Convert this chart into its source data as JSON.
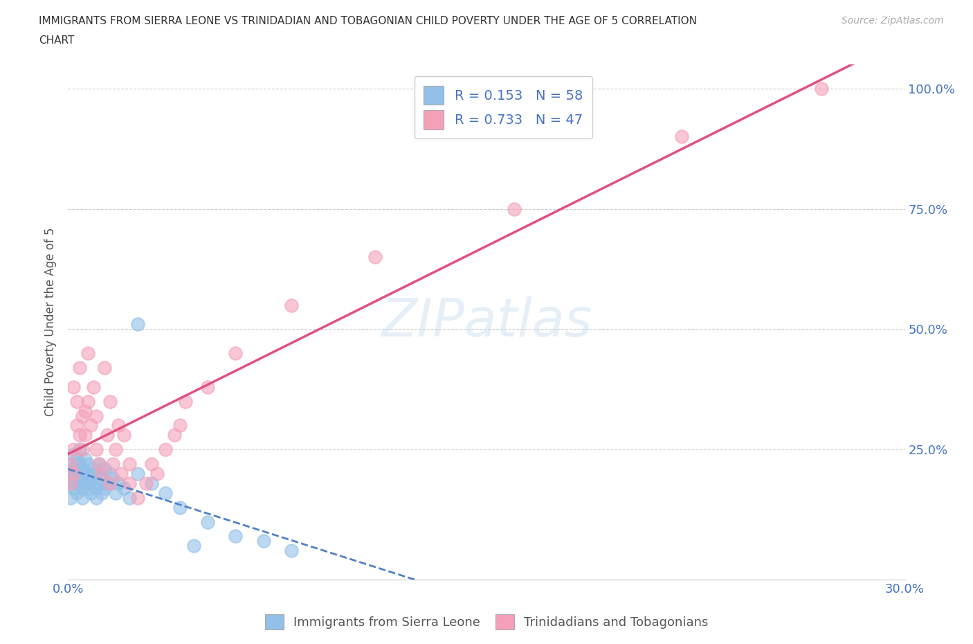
{
  "title": "IMMIGRANTS FROM SIERRA LEONE VS TRINIDADIAN AND TOBAGONIAN CHILD POVERTY UNDER THE AGE OF 5 CORRELATION\nCHART",
  "source": "Source: ZipAtlas.com",
  "ylabel": "Child Poverty Under the Age of 5",
  "xlim": [
    0.0,
    0.3
  ],
  "ylim": [
    -0.02,
    1.05
  ],
  "xtick_positions": [
    0.0,
    0.05,
    0.1,
    0.15,
    0.2,
    0.25,
    0.3
  ],
  "xtick_labels": [
    "0.0%",
    "",
    "",
    "",
    "",
    "",
    "30.0%"
  ],
  "ytick_positions": [
    0.0,
    0.25,
    0.5,
    0.75,
    1.0
  ],
  "ytick_labels": [
    "",
    "25.0%",
    "50.0%",
    "75.0%",
    "100.0%"
  ],
  "legend1_label": "R = 0.153   N = 58",
  "legend2_label": "R = 0.733   N = 47",
  "color_blue": "#92c0e8",
  "color_pink": "#f4a0b8",
  "color_blue_line": "#5080c8",
  "color_pink_line": "#e05080",
  "color_text": "#4472c4",
  "watermark": "ZIPatlas",
  "bottom_legend1": "Immigrants from Sierra Leone",
  "bottom_legend2": "Trinidadians and Tobagonians",
  "sierra_leone_points": [
    [
      0.001,
      0.18
    ],
    [
      0.001,
      0.22
    ],
    [
      0.001,
      0.15
    ],
    [
      0.001,
      0.2
    ],
    [
      0.002,
      0.2
    ],
    [
      0.002,
      0.24
    ],
    [
      0.002,
      0.17
    ],
    [
      0.002,
      0.18
    ],
    [
      0.002,
      0.21
    ],
    [
      0.003,
      0.22
    ],
    [
      0.003,
      0.19
    ],
    [
      0.003,
      0.16
    ],
    [
      0.003,
      0.23
    ],
    [
      0.004,
      0.2
    ],
    [
      0.004,
      0.18
    ],
    [
      0.004,
      0.22
    ],
    [
      0.004,
      0.25
    ],
    [
      0.005,
      0.19
    ],
    [
      0.005,
      0.21
    ],
    [
      0.005,
      0.17
    ],
    [
      0.005,
      0.15
    ],
    [
      0.006,
      0.18
    ],
    [
      0.006,
      0.23
    ],
    [
      0.006,
      0.2
    ],
    [
      0.007,
      0.22
    ],
    [
      0.007,
      0.17
    ],
    [
      0.007,
      0.19
    ],
    [
      0.008,
      0.2
    ],
    [
      0.008,
      0.16
    ],
    [
      0.008,
      0.18
    ],
    [
      0.009,
      0.19
    ],
    [
      0.009,
      0.21
    ],
    [
      0.01,
      0.17
    ],
    [
      0.01,
      0.15
    ],
    [
      0.01,
      0.2
    ],
    [
      0.011,
      0.22
    ],
    [
      0.011,
      0.18
    ],
    [
      0.012,
      0.16
    ],
    [
      0.012,
      0.19
    ],
    [
      0.013,
      0.17
    ],
    [
      0.013,
      0.21
    ],
    [
      0.014,
      0.18
    ],
    [
      0.015,
      0.2
    ],
    [
      0.016,
      0.19
    ],
    [
      0.017,
      0.16
    ],
    [
      0.018,
      0.18
    ],
    [
      0.02,
      0.17
    ],
    [
      0.022,
      0.15
    ],
    [
      0.025,
      0.2
    ],
    [
      0.025,
      0.51
    ],
    [
      0.03,
      0.18
    ],
    [
      0.035,
      0.16
    ],
    [
      0.04,
      0.13
    ],
    [
      0.045,
      0.05
    ],
    [
      0.05,
      0.1
    ],
    [
      0.06,
      0.07
    ],
    [
      0.07,
      0.06
    ],
    [
      0.08,
      0.04
    ]
  ],
  "trinidadian_points": [
    [
      0.001,
      0.18
    ],
    [
      0.001,
      0.22
    ],
    [
      0.002,
      0.2
    ],
    [
      0.002,
      0.25
    ],
    [
      0.002,
      0.38
    ],
    [
      0.003,
      0.3
    ],
    [
      0.003,
      0.35
    ],
    [
      0.004,
      0.42
    ],
    [
      0.004,
      0.28
    ],
    [
      0.005,
      0.32
    ],
    [
      0.005,
      0.25
    ],
    [
      0.006,
      0.28
    ],
    [
      0.006,
      0.33
    ],
    [
      0.007,
      0.45
    ],
    [
      0.007,
      0.35
    ],
    [
      0.008,
      0.3
    ],
    [
      0.009,
      0.38
    ],
    [
      0.01,
      0.25
    ],
    [
      0.01,
      0.32
    ],
    [
      0.011,
      0.22
    ],
    [
      0.012,
      0.2
    ],
    [
      0.013,
      0.42
    ],
    [
      0.014,
      0.28
    ],
    [
      0.015,
      0.18
    ],
    [
      0.015,
      0.35
    ],
    [
      0.016,
      0.22
    ],
    [
      0.017,
      0.25
    ],
    [
      0.018,
      0.3
    ],
    [
      0.019,
      0.2
    ],
    [
      0.02,
      0.28
    ],
    [
      0.022,
      0.18
    ],
    [
      0.022,
      0.22
    ],
    [
      0.025,
      0.15
    ],
    [
      0.028,
      0.18
    ],
    [
      0.03,
      0.22
    ],
    [
      0.032,
      0.2
    ],
    [
      0.035,
      0.25
    ],
    [
      0.038,
      0.28
    ],
    [
      0.04,
      0.3
    ],
    [
      0.042,
      0.35
    ],
    [
      0.05,
      0.38
    ],
    [
      0.06,
      0.45
    ],
    [
      0.08,
      0.55
    ],
    [
      0.11,
      0.65
    ],
    [
      0.16,
      0.75
    ],
    [
      0.22,
      0.9
    ],
    [
      0.27,
      1.0
    ]
  ]
}
